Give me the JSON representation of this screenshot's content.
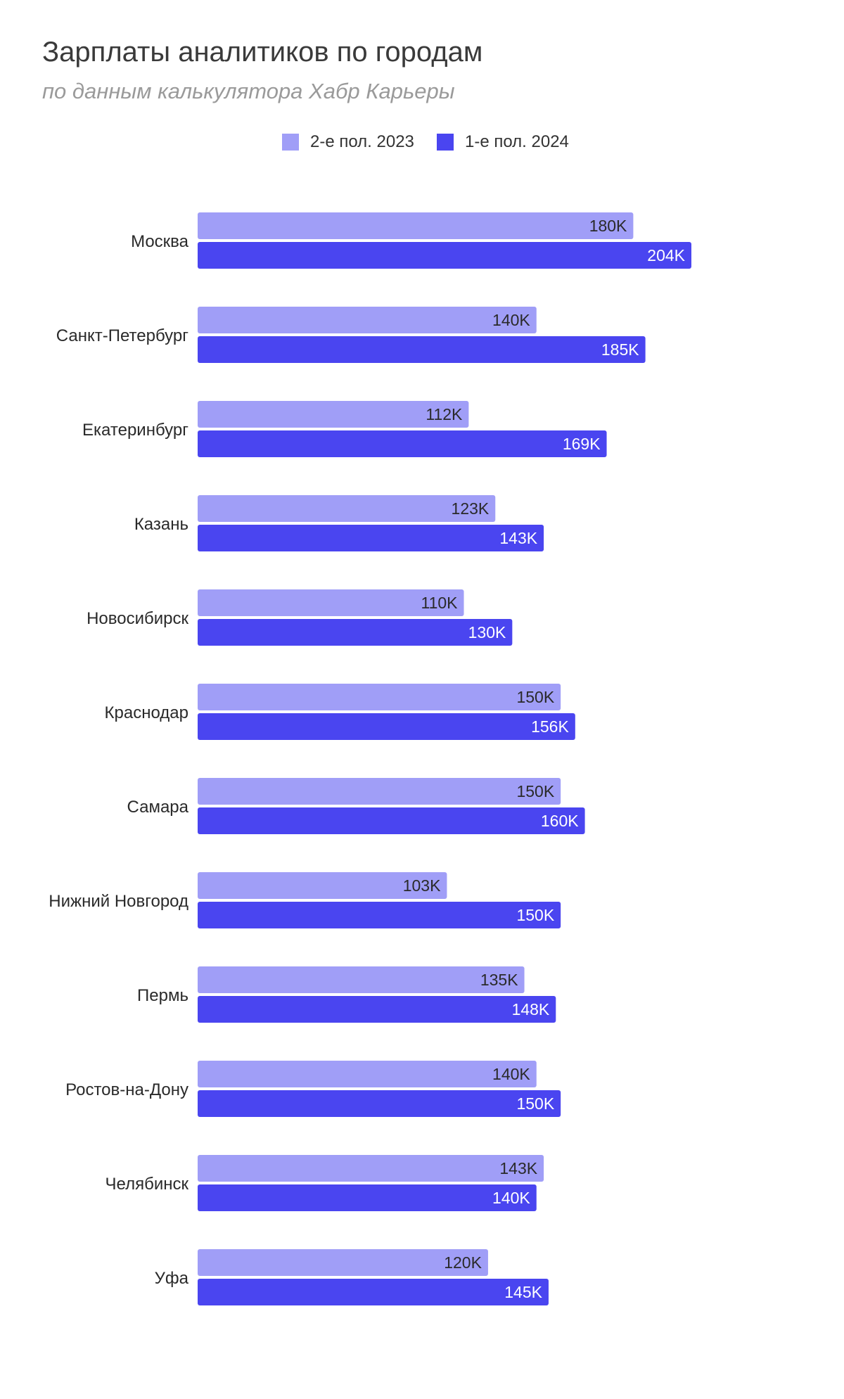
{
  "title": "Зарплаты аналитиков по городам",
  "subtitle": "по данным калькулятора Хабр Карьеры",
  "colors": {
    "series1": "#a09ef7",
    "series2": "#4a45f0"
  },
  "legend": [
    {
      "label": "2-е пол. 2023",
      "color": "#a09ef7"
    },
    {
      "label": "1-е пол. 2024",
      "color": "#4a45f0"
    }
  ],
  "chart_data": {
    "type": "bar",
    "orientation": "horizontal",
    "title": "Зарплаты аналитиков по городам",
    "subtitle": "по данным калькулятора Хабр Карьеры",
    "categories": [
      "Москва",
      "Санкт-Петербург",
      "Екатеринбург",
      "Казань",
      "Новосибирск",
      "Краснодар",
      "Самара",
      "Нижний Новгород",
      "Пермь",
      "Ростов-на-Дону",
      "Челябинск",
      "Уфа"
    ],
    "series": [
      {
        "name": "2-е пол. 2023",
        "values": [
          180,
          140,
          112,
          123,
          110,
          150,
          150,
          103,
          135,
          140,
          143,
          120
        ],
        "labels": [
          "180K",
          "140K",
          "112K",
          "123K",
          "110K",
          "150K",
          "150K",
          "103K",
          "135K",
          "140K",
          "143K",
          "120K"
        ]
      },
      {
        "name": "1-е пол. 2024",
        "values": [
          204,
          185,
          169,
          143,
          130,
          156,
          160,
          150,
          148,
          150,
          140,
          145
        ],
        "labels": [
          "204K",
          "185K",
          "169K",
          "143K",
          "130K",
          "156K",
          "160K",
          "150K",
          "148K",
          "150K",
          "140K",
          "145K"
        ]
      }
    ],
    "xlim": [
      0,
      204
    ],
    "grid": false,
    "legend_position": "top-center"
  }
}
